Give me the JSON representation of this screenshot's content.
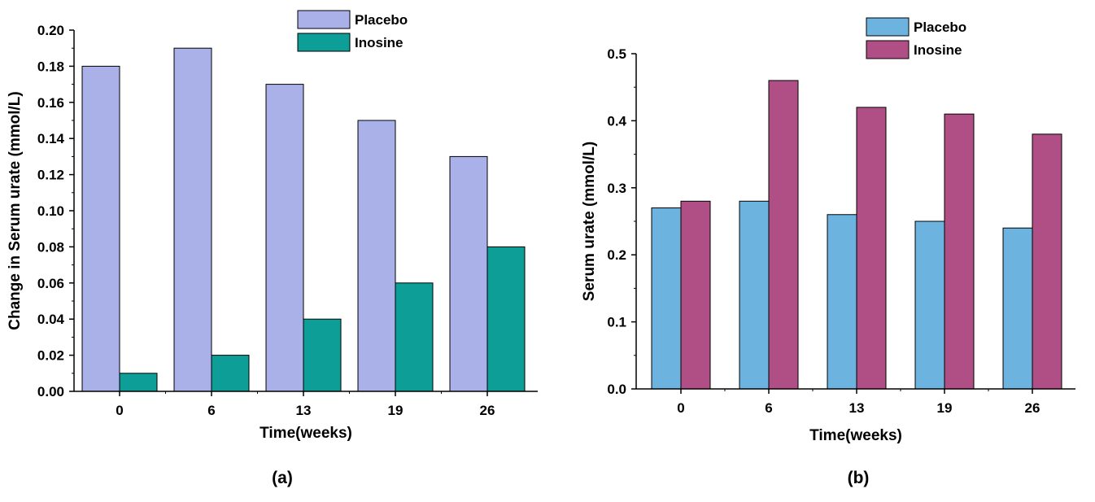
{
  "chart_data": [
    {
      "type": "bar",
      "panel_label": "(a)",
      "categories": [
        "0",
        "6",
        "13",
        "19",
        "26"
      ],
      "series": [
        {
          "name": "Placebo",
          "values": [
            0.18,
            0.19,
            0.17,
            0.15,
            0.13
          ],
          "color": "#aab0e8"
        },
        {
          "name": "Inosine",
          "values": [
            0.01,
            0.02,
            0.04,
            0.06,
            0.08
          ],
          "color": "#0e9e98"
        }
      ],
      "xlabel": "Time(weeks)",
      "ylabel": "Change in Serum urate (mmol/L)",
      "ylim": [
        0,
        0.2
      ],
      "yticks": [
        "0.00",
        "0.02",
        "0.04",
        "0.06",
        "0.08",
        "0.10",
        "0.12",
        "0.14",
        "0.16",
        "0.18",
        "0.20"
      ],
      "grid": false,
      "legend": "top-right"
    },
    {
      "type": "bar",
      "panel_label": "(b)",
      "categories": [
        "0",
        "6",
        "13",
        "19",
        "26"
      ],
      "series": [
        {
          "name": "Placebo",
          "values": [
            0.27,
            0.28,
            0.26,
            0.25,
            0.24
          ],
          "color": "#6cb3e0"
        },
        {
          "name": "Inosine",
          "values": [
            0.28,
            0.46,
            0.42,
            0.41,
            0.38
          ],
          "color": "#b04f86"
        }
      ],
      "xlabel": "Time(weeks)",
      "ylabel": "Serum urate (mmol/L)",
      "ylim": [
        0,
        0.5
      ],
      "yticks": [
        "0.0",
        "0.1",
        "0.2",
        "0.3",
        "0.4",
        "0.5"
      ],
      "grid": false,
      "legend": "top-right"
    }
  ]
}
